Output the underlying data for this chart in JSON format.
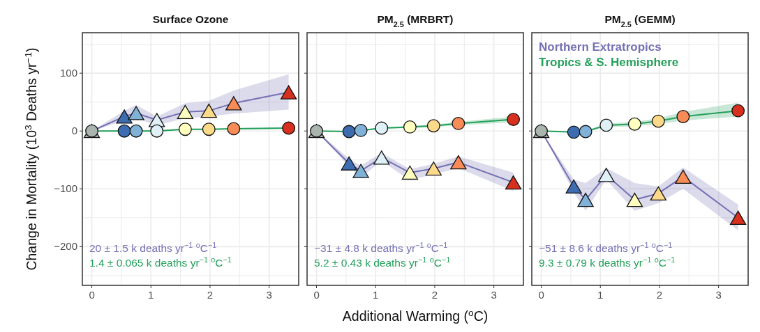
{
  "chart_data": [
    {
      "type": "line",
      "title": "Surface Ozone",
      "ylabel": "Change in Mortality (10$^{3}$ Deaths yr$^{−1}$)",
      "x": [
        0,
        0.55,
        0.75,
        1.1,
        1.58,
        1.98,
        2.4,
        3.33
      ],
      "xlim": [
        -0.16,
        3.5
      ],
      "ylim": [
        -267,
        170
      ],
      "xticks": [
        0,
        1,
        2,
        3
      ],
      "yticks": [
        100,
        0,
        {
          "value": -100,
          "label": "−100"
        },
        {
          "value": -200,
          "label": "−200"
        }
      ],
      "grid": true,
      "series": [
        {
          "color": "#23a05a",
          "marker": "circle",
          "values": [
            0,
            0,
            0,
            0,
            3,
            3,
            4,
            5
          ],
          "lower": [
            0,
            -1,
            -1,
            -1,
            2,
            2,
            3,
            4
          ],
          "upper": [
            0,
            1,
            1,
            1,
            4,
            4,
            5,
            6
          ],
          "colors": [
            "#a9b5ae",
            "#3d6db0",
            "#80b1d6",
            "#dff0f7",
            "#ffffc0",
            "#fdd98a",
            "#f88b56",
            "#d7301f"
          ]
        },
        {
          "color": "#7570b3",
          "marker": "triangle",
          "values": [
            0,
            25,
            31,
            19,
            33,
            35,
            48,
            67
          ],
          "lower": [
            0,
            18,
            22,
            10,
            22,
            25,
            30,
            37
          ],
          "upper": [
            0,
            35,
            45,
            25,
            48,
            52,
            70,
            98
          ],
          "colors": [
            "#a9b5ae",
            "#3d6db0",
            "#80b1d6",
            "#dff0f7",
            "#ffffc0",
            "#fdd98a",
            "#f88b56",
            "#d7301f"
          ]
        }
      ],
      "annotations": [
        "20 ± 1.5 k deaths yr$^{−1}$ $^{o}$C$^{−1}$",
        "1.4 ± 0.065 k deaths yr$^{−1}$ $^{o}$C$^{−1}$"
      ]
    },
    {
      "type": "line",
      "title": "PM$_{2.5}$ (MRBRT)",
      "xlabel": "Additional Warming ($^{o}$C)",
      "tick_labels": "x",
      "x": [
        0,
        0.55,
        0.75,
        1.1,
        1.58,
        1.98,
        2.4,
        3.33
      ],
      "xlim": [
        -0.16,
        3.5
      ],
      "ylim": [
        -267,
        170
      ],
      "xticks": [
        0,
        1,
        2,
        3
      ],
      "yticks": [
        {
          "value": 100,
          "label": null
        },
        {
          "value": 0,
          "label": null
        },
        {
          "value": -100,
          "label": null
        },
        {
          "value": -200,
          "label": null
        }
      ],
      "grid": true,
      "series": [
        {
          "color": "#23a05a",
          "marker": "circle",
          "values": [
            0,
            -1,
            1,
            5,
            7,
            9,
            13,
            20
          ],
          "lower": [
            0,
            -2,
            0,
            4,
            5,
            7,
            10,
            15
          ],
          "upper": [
            0,
            0,
            2,
            6,
            9,
            11,
            16,
            25
          ],
          "colors": [
            "#a9b5ae",
            "#3d6db0",
            "#80b1d6",
            "#dff0f7",
            "#ffffc0",
            "#fdd98a",
            "#f88b56",
            "#d7301f"
          ]
        },
        {
          "color": "#7570b3",
          "marker": "triangle",
          "values": [
            0,
            -56,
            -69,
            -46,
            -72,
            -65,
            -54,
            -89
          ],
          "lower": [
            0,
            -62,
            -80,
            -52,
            -85,
            -75,
            -64,
            -104
          ],
          "upper": [
            0,
            -48,
            -60,
            -38,
            -66,
            -57,
            -44,
            -72
          ],
          "colors": [
            "#a9b5ae",
            "#3d6db0",
            "#80b1d6",
            "#dff0f7",
            "#ffffc0",
            "#fdd98a",
            "#f88b56",
            "#d7301f"
          ]
        }
      ],
      "annotations": [
        "−31 ± 4.8 k deaths yr$^{−1}$ $^{o}$C$^{−1}$",
        "5.2 ± 0.43 k deaths yr$^{−1}$ $^{o}$C$^{−1}$"
      ]
    },
    {
      "type": "line",
      "title": "PM$_{2.5}$ (GEMM)",
      "tick_labels": "x",
      "legend": "top left",
      "x": [
        0,
        0.55,
        0.75,
        1.1,
        1.58,
        1.98,
        2.4,
        3.33
      ],
      "xlim": [
        -0.16,
        3.5
      ],
      "ylim": [
        -267,
        170
      ],
      "xticks": [
        0,
        1,
        2,
        3
      ],
      "yticks": [
        {
          "value": 100,
          "label": null
        },
        {
          "value": 0,
          "label": null
        },
        {
          "value": -100,
          "label": null
        },
        {
          "value": -200,
          "label": null
        }
      ],
      "grid": true,
      "series": [
        {
          "name": "Tropics & S. Hemisphere",
          "color": "#23a05a",
          "marker": "circle",
          "values": [
            0,
            -2,
            -1,
            10,
            12,
            17,
            25,
            35
          ],
          "lower": [
            0,
            -3,
            -2,
            7,
            8,
            12,
            18,
            25
          ],
          "upper": [
            0,
            -1,
            0,
            13,
            16,
            22,
            33,
            49
          ],
          "colors": [
            "#a9b5ae",
            "#3d6db0",
            "#80b1d6",
            "#dff0f7",
            "#ffffc0",
            "#fdd98a",
            "#f88b56",
            "#d7301f"
          ]
        },
        {
          "name": "Northern Extratropics",
          "color": "#7570b3",
          "marker": "triangle",
          "values": [
            0,
            -96,
            -119,
            -76,
            -119,
            -108,
            -79,
            -150
          ],
          "lower": [
            0,
            -106,
            -138,
            -84,
            -138,
            -125,
            -100,
            -172
          ],
          "upper": [
            0,
            -84,
            -90,
            -64,
            -90,
            -96,
            -63,
            -127
          ],
          "colors": [
            "#a9b5ae",
            "#3d6db0",
            "#80b1d6",
            "#dff0f7",
            "#ffffc0",
            "#fdd98a",
            "#f88b56",
            "#d7301f"
          ]
        }
      ],
      "annotations": [
        "−51 ± 8.6 k deaths yr$^{−1}$ $^{o}$C$^{−1}$",
        "9.3 ± 0.79 k deaths yr$^{−1}$ $^{o}$C$^{−1}$"
      ]
    }
  ]
}
